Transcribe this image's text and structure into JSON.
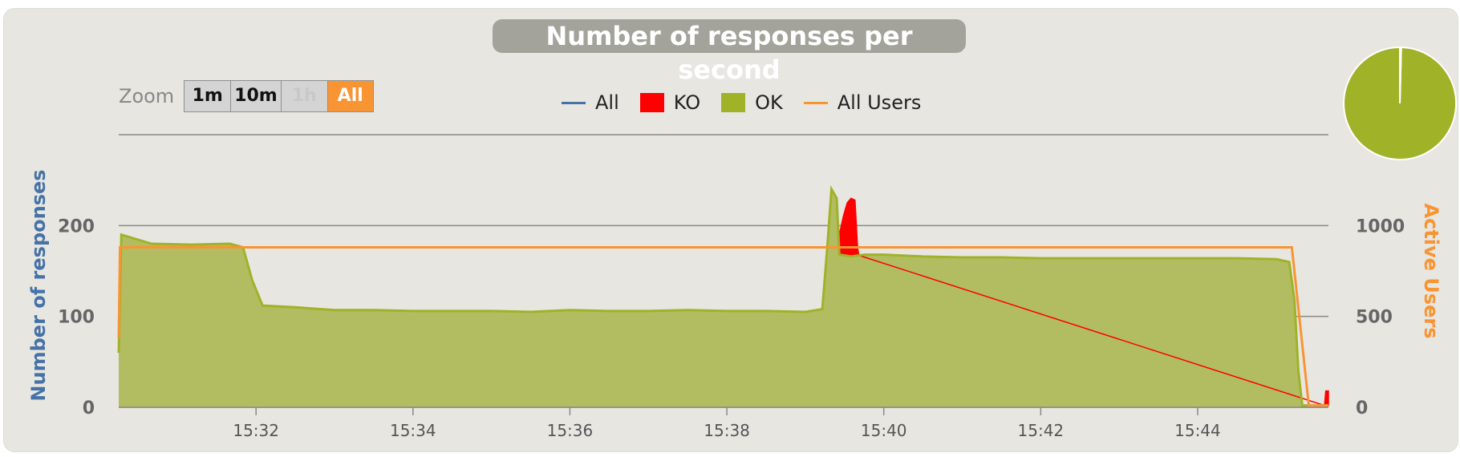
{
  "zoom": {
    "label": "Zoom",
    "buttons": [
      {
        "label": "1m",
        "state": "normal"
      },
      {
        "label": "10m",
        "state": "normal"
      },
      {
        "label": "1h",
        "state": "disabled"
      },
      {
        "label": "All",
        "state": "active"
      }
    ]
  },
  "colors": {
    "all": "#4572a7",
    "ko": "#ff0000",
    "ok": "#a0b228",
    "ok_fill": "#b2bd62",
    "users": "#f99433",
    "panel": "#e7e6e1"
  },
  "chart_data": {
    "type": "area",
    "title": "Number of responses per second",
    "legend": {
      "placement": "top-center",
      "items": [
        {
          "name": "All",
          "marker": "line",
          "color": "#4572a7"
        },
        {
          "name": "KO",
          "marker": "box",
          "color": "#ff0000"
        },
        {
          "name": "OK",
          "marker": "box",
          "color": "#a0b228"
        },
        {
          "name": "All Users",
          "marker": "line",
          "color": "#f99433"
        }
      ]
    },
    "x_axis": {
      "type": "time",
      "range": [
        "15:30:15",
        "15:45:40"
      ],
      "ticks": [
        "15:32",
        "15:34",
        "15:36",
        "15:38",
        "15:40",
        "15:42",
        "15:44"
      ]
    },
    "y_axis_left": {
      "label": "Number of responses",
      "ticks": [
        "0",
        "100",
        "200"
      ],
      "range": [
        0,
        300
      ],
      "grid": true
    },
    "y_axis_right": {
      "label": "Active Users",
      "ticks": [
        "0",
        "500",
        "1000"
      ],
      "range": [
        0,
        1500
      ]
    },
    "series": [
      {
        "name": "OK",
        "axis": "left",
        "points": [
          [
            "15:30:15",
            60
          ],
          [
            "15:30:17",
            190
          ],
          [
            "15:30:40",
            180
          ],
          [
            "15:31:10",
            179
          ],
          [
            "15:31:40",
            180
          ],
          [
            "15:31:50",
            176
          ],
          [
            "15:31:57",
            140
          ],
          [
            "15:32:05",
            112
          ],
          [
            "15:32:30",
            110
          ],
          [
            "15:33:00",
            107
          ],
          [
            "15:33:30",
            107
          ],
          [
            "15:34:00",
            106
          ],
          [
            "15:34:30",
            106
          ],
          [
            "15:35:00",
            106
          ],
          [
            "15:35:30",
            105
          ],
          [
            "15:36:00",
            107
          ],
          [
            "15:36:30",
            106
          ],
          [
            "15:37:00",
            106
          ],
          [
            "15:37:30",
            107
          ],
          [
            "15:38:00",
            106
          ],
          [
            "15:38:30",
            106
          ],
          [
            "15:39:00",
            105
          ],
          [
            "15:39:13",
            108
          ],
          [
            "15:39:17",
            180
          ],
          [
            "15:39:20",
            240
          ],
          [
            "15:39:24",
            230
          ],
          [
            "15:39:26",
            168
          ],
          [
            "15:39:35",
            166
          ],
          [
            "15:39:45",
            168
          ],
          [
            "15:40:00",
            168
          ],
          [
            "15:40:30",
            166
          ],
          [
            "15:41:00",
            165
          ],
          [
            "15:41:30",
            165
          ],
          [
            "15:42:00",
            164
          ],
          [
            "15:42:30",
            164
          ],
          [
            "15:43:00",
            164
          ],
          [
            "15:43:30",
            164
          ],
          [
            "15:44:00",
            164
          ],
          [
            "15:44:30",
            164
          ],
          [
            "15:45:00",
            163
          ],
          [
            "15:45:10",
            160
          ],
          [
            "15:45:14",
            118
          ],
          [
            "15:45:17",
            40
          ],
          [
            "15:45:20",
            2
          ],
          [
            "15:45:40",
            2
          ]
        ]
      },
      {
        "name": "KO",
        "axis": "left",
        "points": [
          [
            "15:39:25",
            0
          ],
          [
            "15:39:26",
            190
          ],
          [
            "15:39:29",
            210
          ],
          [
            "15:39:32",
            225
          ],
          [
            "15:39:35",
            230
          ],
          [
            "15:39:38",
            228
          ],
          [
            "15:39:40",
            175
          ],
          [
            "15:39:41",
            0
          ],
          [
            "15:45:37",
            0
          ],
          [
            "15:45:38",
            18
          ],
          [
            "15:45:40",
            18
          ]
        ]
      },
      {
        "name": "All Users",
        "axis": "right",
        "points": [
          [
            "15:30:15",
            380
          ],
          [
            "15:30:16",
            880
          ],
          [
            "15:45:12",
            880
          ],
          [
            "15:45:25",
            10
          ],
          [
            "15:45:40",
            10
          ]
        ]
      }
    ]
  },
  "pie": {
    "slices": [
      {
        "name": "OK",
        "value": 99.6,
        "color": "#a0b228"
      },
      {
        "name": "KO",
        "value": 0.4,
        "color": "#ff0000"
      }
    ]
  }
}
